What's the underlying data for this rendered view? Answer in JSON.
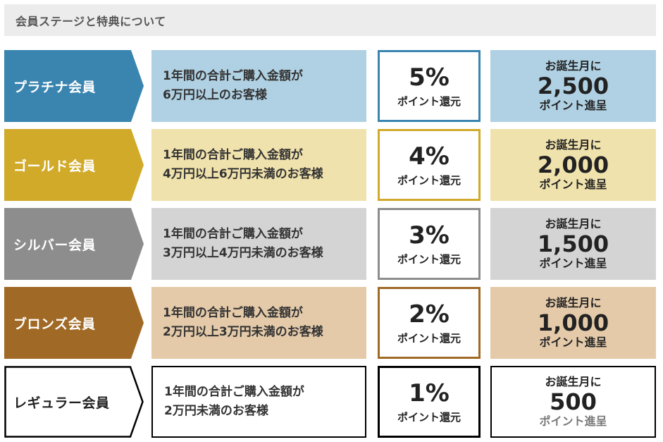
{
  "header": {
    "title": "会員ステージと特典について"
  },
  "tiers": [
    {
      "name": "プラチナ会員",
      "condition_line1": "1年間の合計ご購入金額が",
      "condition_line2": "6万円以上のお客様",
      "rate": "5%",
      "rate_label": "ポイント還元",
      "birthday_label": "お誕生月に",
      "birthday_points": "2,500",
      "birthday_suffix": "ポイント進呈",
      "colors": {
        "rank": "#3a85b0",
        "light": "#b0d1e3",
        "border": "#3a85b0",
        "text": "#ffffff"
      }
    },
    {
      "name": "ゴールド会員",
      "condition_line1": "1年間の合計ご購入金額が",
      "condition_line2": "4万円以上6万円未満のお客様",
      "rate": "4%",
      "rate_label": "ポイント還元",
      "birthday_label": "お誕生月に",
      "birthday_points": "2,000",
      "birthday_suffix": "ポイント進呈",
      "colors": {
        "rank": "#d1aa29",
        "light": "#f0e2ac",
        "border": "#d1aa29",
        "text": "#ffffff"
      }
    },
    {
      "name": "シルバー会員",
      "condition_line1": "1年間の合計ご購入金額が",
      "condition_line2": "3万円以上4万円未満のお客様",
      "rate": "3%",
      "rate_label": "ポイント還元",
      "birthday_label": "お誕生月に",
      "birthday_points": "1,500",
      "birthday_suffix": "ポイント進呈",
      "colors": {
        "rank": "#8d8d8d",
        "light": "#d4d4d4",
        "border": "#8d8d8d",
        "text": "#ffffff"
      }
    },
    {
      "name": "ブロンズ会員",
      "condition_line1": "1年間の合計ご購入金額が",
      "condition_line2": "2万円以上3万円未満のお客様",
      "rate": "2%",
      "rate_label": "ポイント還元",
      "birthday_label": "お誕生月に",
      "birthday_points": "1,000",
      "birthday_suffix": "ポイント進呈",
      "colors": {
        "rank": "#a06a26",
        "light": "#e4caa9",
        "border": "#a06a26",
        "text": "#ffffff"
      }
    },
    {
      "name": "レギュラー会員",
      "condition_line1": "1年間の合計ご購入金額が",
      "condition_line2": "2万円未満のお客様",
      "rate": "1%",
      "rate_label": "ポイント還元",
      "birthday_label": "お誕生月に",
      "birthday_points": "500",
      "birthday_suffix": "ポイント進呈",
      "colors": {
        "rank": "#ffffff",
        "light": "#ffffff",
        "border": "#000000",
        "text": "#222222",
        "suffix_text": "#777777"
      }
    }
  ]
}
